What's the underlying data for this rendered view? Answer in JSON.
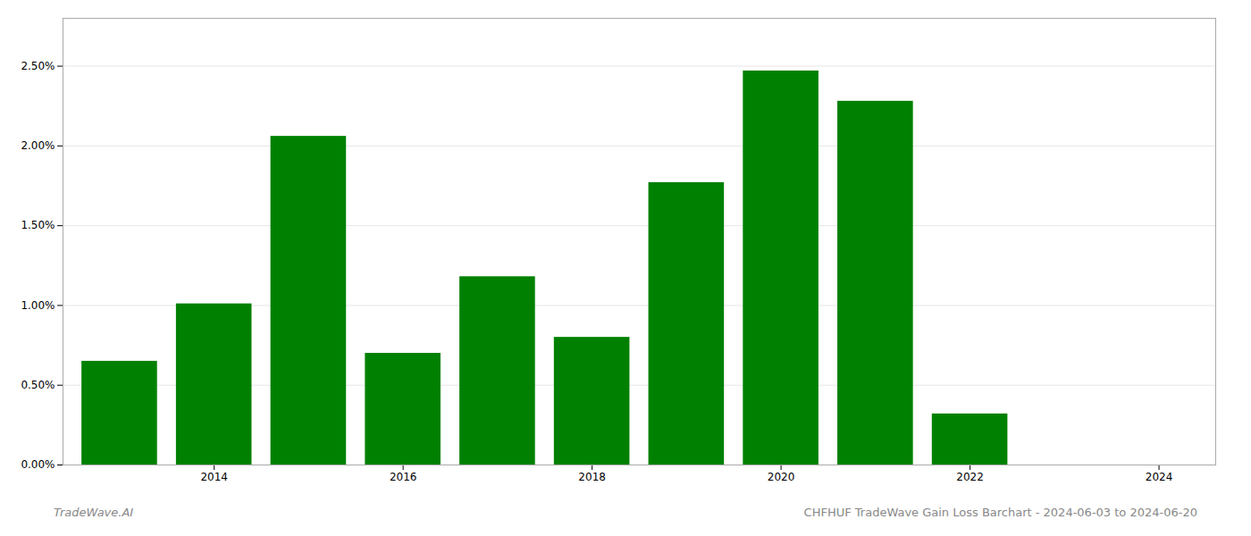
{
  "chart_data": {
    "type": "bar",
    "x": [
      2013,
      2014,
      2015,
      2016,
      2017,
      2018,
      2019,
      2020,
      2021,
      2022,
      2023
    ],
    "values": [
      0.0065,
      0.0101,
      0.0206,
      0.007,
      0.0118,
      0.008,
      0.0177,
      0.0247,
      0.0228,
      0.0032,
      0.0
    ],
    "color": "#008000",
    "xlim": [
      2012.4,
      2024.6
    ],
    "xticks": [
      2014,
      2016,
      2018,
      2020,
      2022,
      2024
    ],
    "ylim": [
      0.0,
      0.028
    ],
    "yticks": [
      {
        "value": 0.0,
        "label": "0.00%"
      },
      {
        "value": 0.005,
        "label": "0.50%"
      },
      {
        "value": 0.01,
        "label": "1.00%"
      },
      {
        "value": 0.015,
        "label": "1.50%"
      },
      {
        "value": 0.02,
        "label": "2.00%"
      },
      {
        "value": 0.025,
        "label": "2.50%"
      }
    ],
    "grid": true,
    "annotations": [
      "TradeWave.AI",
      "CHFHUF TradeWave Gain Loss Barchart - 2024-06-03 to 2024-06-20"
    ]
  }
}
